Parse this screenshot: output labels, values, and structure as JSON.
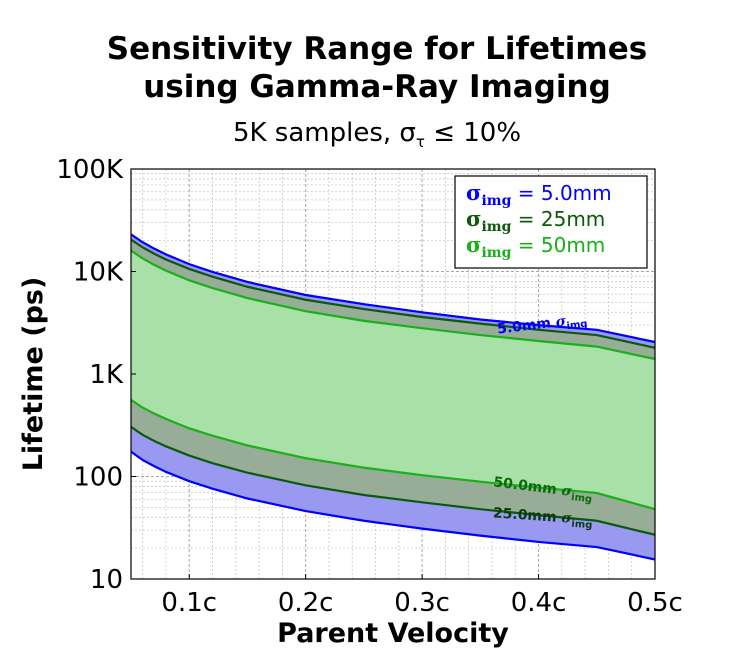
{
  "chart_data": {
    "type": "area",
    "title": "Sensitivity Range for Lifetimes using Gamma-Ray Imaging",
    "title_lines": [
      "Sensitivity Range for Lifetimes",
      "using Gamma-Ray Imaging"
    ],
    "subtitle_prefix": "5K samples, ",
    "subtitle_symbol": "σ",
    "subtitle_sub": "τ",
    "subtitle_suffix": " ≤ 10%",
    "xlabel": "Parent Velocity",
    "ylabel": "Lifetime (ps)",
    "xlim": [
      0.05,
      0.5
    ],
    "ylim": [
      10,
      100000
    ],
    "yscale": "log",
    "grid": true,
    "legend_position": "top-right",
    "x_ticks": [
      0.1,
      0.2,
      0.3,
      0.4,
      0.5
    ],
    "x_tick_labels": [
      "0.1c",
      "0.2c",
      "0.3c",
      "0.4c",
      "0.5c"
    ],
    "y_ticks": [
      10,
      100,
      1000,
      10000,
      100000
    ],
    "y_tick_labels": [
      "10",
      "100",
      "1K",
      "10K",
      "100K"
    ],
    "x": [
      0.05,
      0.06,
      0.07,
      0.08,
      0.1,
      0.12,
      0.15,
      0.2,
      0.25,
      0.3,
      0.35,
      0.4,
      0.45,
      0.5
    ],
    "series": [
      {
        "name": "σimg = 5.0mm",
        "legend_symbol": "σ",
        "legend_sub": "img",
        "legend_value": " = 5.0mm",
        "color": "#0000ff",
        "fill": "#9999f2",
        "upper": [
          23000,
          19300,
          16700,
          14700,
          11800,
          9900,
          7900,
          5900,
          4800,
          4000,
          3400,
          3000,
          2700,
          2050
        ],
        "lower": [
          175,
          145,
          126,
          111,
          90,
          76,
          61,
          46,
          37,
          31,
          26.5,
          23,
          20.5,
          15.5
        ]
      },
      {
        "name": "σimg = 25mm",
        "legend_symbol": "σ",
        "legend_sub": "img",
        "legend_value": " = 25mm",
        "color": "#0b5a0b",
        "fill": "#97ad97",
        "upper": [
          20500,
          17200,
          14900,
          13100,
          10600,
          8900,
          7100,
          5300,
          4300,
          3600,
          3100,
          2700,
          2400,
          1800
        ],
        "lower": [
          305,
          255,
          222,
          197,
          160,
          135,
          109,
          82,
          66,
          56,
          48,
          42,
          37,
          27
        ]
      },
      {
        "name": "σimg = 50mm",
        "legend_symbol": "σ",
        "legend_sub": "img",
        "legend_value": " = 50mm",
        "color": "#19b019",
        "fill": "#a8e0a8",
        "upper": [
          16000,
          13400,
          11600,
          10200,
          8200,
          6900,
          5500,
          4100,
          3300,
          2800,
          2400,
          2100,
          1850,
          1400
        ],
        "lower": [
          560,
          470,
          410,
          365,
          295,
          250,
          201,
          151,
          122,
          103,
          89,
          78,
          69,
          48
        ]
      }
    ],
    "annotations": [
      {
        "prefix": "5.0mm ",
        "symbol": "σ",
        "sub": "img",
        "color": "#0000ff",
        "x": 0.4,
        "y": 2800,
        "angle": -7
      },
      {
        "prefix": "50.0mm ",
        "symbol": "σ",
        "sub": "img",
        "color": "#0b6a0b",
        "x": 0.4,
        "y": 70,
        "angle": 7
      },
      {
        "prefix": "25.0mm ",
        "symbol": "σ",
        "sub": "img",
        "color": "#0b3a0b",
        "x": 0.4,
        "y": 37,
        "angle": 4
      }
    ]
  }
}
